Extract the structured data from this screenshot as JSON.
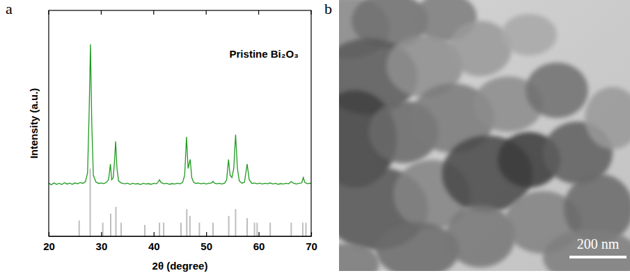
{
  "chart_data": {
    "type": "line",
    "panel_label": "a",
    "x_label": "2θ (degree)",
    "y_label": "Intensity (a.u.)",
    "xlim": [
      20,
      70
    ],
    "xticks": [
      20,
      30,
      40,
      50,
      60,
      70
    ],
    "ylim": [
      0,
      100
    ],
    "tick_labels": "x",
    "legend": "upper right",
    "series": [
      {
        "name": "Pristine Bi₂O₃",
        "type": "line",
        "color": "#1e9a1e",
        "x": [
          20,
          20.5,
          21,
          21.5,
          22,
          22.5,
          23,
          23.5,
          24,
          24.5,
          25,
          25.5,
          26,
          26.5,
          27,
          27.4,
          27.7,
          27.95,
          28.2,
          28.5,
          29,
          29.5,
          30,
          30.5,
          31,
          31.4,
          31.75,
          32.0,
          32.3,
          32.55,
          32.75,
          33.0,
          33.3,
          33.8,
          34.5,
          35,
          35.5,
          36,
          36.5,
          37,
          37.5,
          38,
          38.5,
          39,
          39.5,
          40,
          40.5,
          40.9,
          41.1,
          41.4,
          42,
          42.5,
          43,
          43.5,
          44,
          44.5,
          45,
          45.5,
          45.9,
          46.25,
          46.55,
          46.95,
          47.25,
          47.6,
          48,
          48.5,
          49,
          49.5,
          50,
          50.5,
          51,
          51.3,
          51.6,
          52,
          52.5,
          53,
          53.5,
          53.9,
          54.25,
          54.55,
          54.9,
          55.25,
          55.6,
          55.95,
          56.3,
          56.8,
          57.3,
          57.8,
          58.2,
          58.7,
          59.2,
          59.7,
          60.2,
          60.7,
          61.2,
          61.7,
          62.2,
          62.7,
          63.2,
          63.7,
          64.2,
          64.7,
          65.2,
          65.7,
          66.2,
          66.7,
          67.2,
          67.7,
          68.2,
          68.5,
          68.8,
          69.3,
          69.7,
          70
        ],
        "values": [
          23.5,
          22.8,
          23.6,
          23.0,
          23.4,
          22.9,
          23.7,
          23.1,
          23.5,
          23.0,
          23.6,
          23.2,
          23.8,
          23.4,
          24.2,
          28,
          55,
          85,
          50,
          27,
          24,
          23.4,
          23.6,
          23.3,
          23.9,
          25,
          32,
          25,
          26,
          34,
          42,
          30,
          24.5,
          23.6,
          23.2,
          23.5,
          23.0,
          23.4,
          23.1,
          23.3,
          22.9,
          23.4,
          23.1,
          23.3,
          23.0,
          23.4,
          23.2,
          24.2,
          25,
          23.8,
          23.2,
          23.4,
          23.0,
          23.3,
          23.1,
          23.4,
          23.2,
          23.8,
          27,
          44,
          30,
          34,
          26,
          23.9,
          23.4,
          23.6,
          23.2,
          23.5,
          23.1,
          23.4,
          23.6,
          24.3,
          23.5,
          23.2,
          23.4,
          23.1,
          23.5,
          25,
          34,
          27,
          26,
          30,
          45,
          30,
          24.5,
          23.5,
          24,
          32,
          25,
          23.4,
          23.6,
          23.2,
          23.5,
          23.1,
          23.4,
          23.2,
          23.6,
          23.1,
          23.4,
          23.0,
          23.3,
          23.1,
          23.4,
          23.2,
          24.2,
          23.4,
          23.1,
          23.4,
          23.6,
          26,
          23.8,
          23.2,
          23.5,
          23.3
        ]
      },
      {
        "type": "stick",
        "color": "#bdbdbd",
        "x": [
          25.8,
          27.9,
          30.3,
          31.8,
          32.8,
          33.8,
          38.3,
          41.1,
          41.9,
          45.2,
          46.3,
          46.9,
          48.7,
          51.3,
          54.3,
          55.6,
          57.8,
          59.2,
          59.7,
          62.2,
          66.2,
          68.4,
          69.0
        ],
        "values": [
          7,
          30,
          6,
          10,
          13,
          6,
          5,
          6,
          6,
          6,
          12,
          9,
          6,
          6,
          9,
          12,
          8,
          6,
          6,
          6,
          6,
          6,
          6
        ]
      }
    ]
  },
  "image": {
    "panel_label": "b",
    "scale_bar": "200 nm"
  }
}
